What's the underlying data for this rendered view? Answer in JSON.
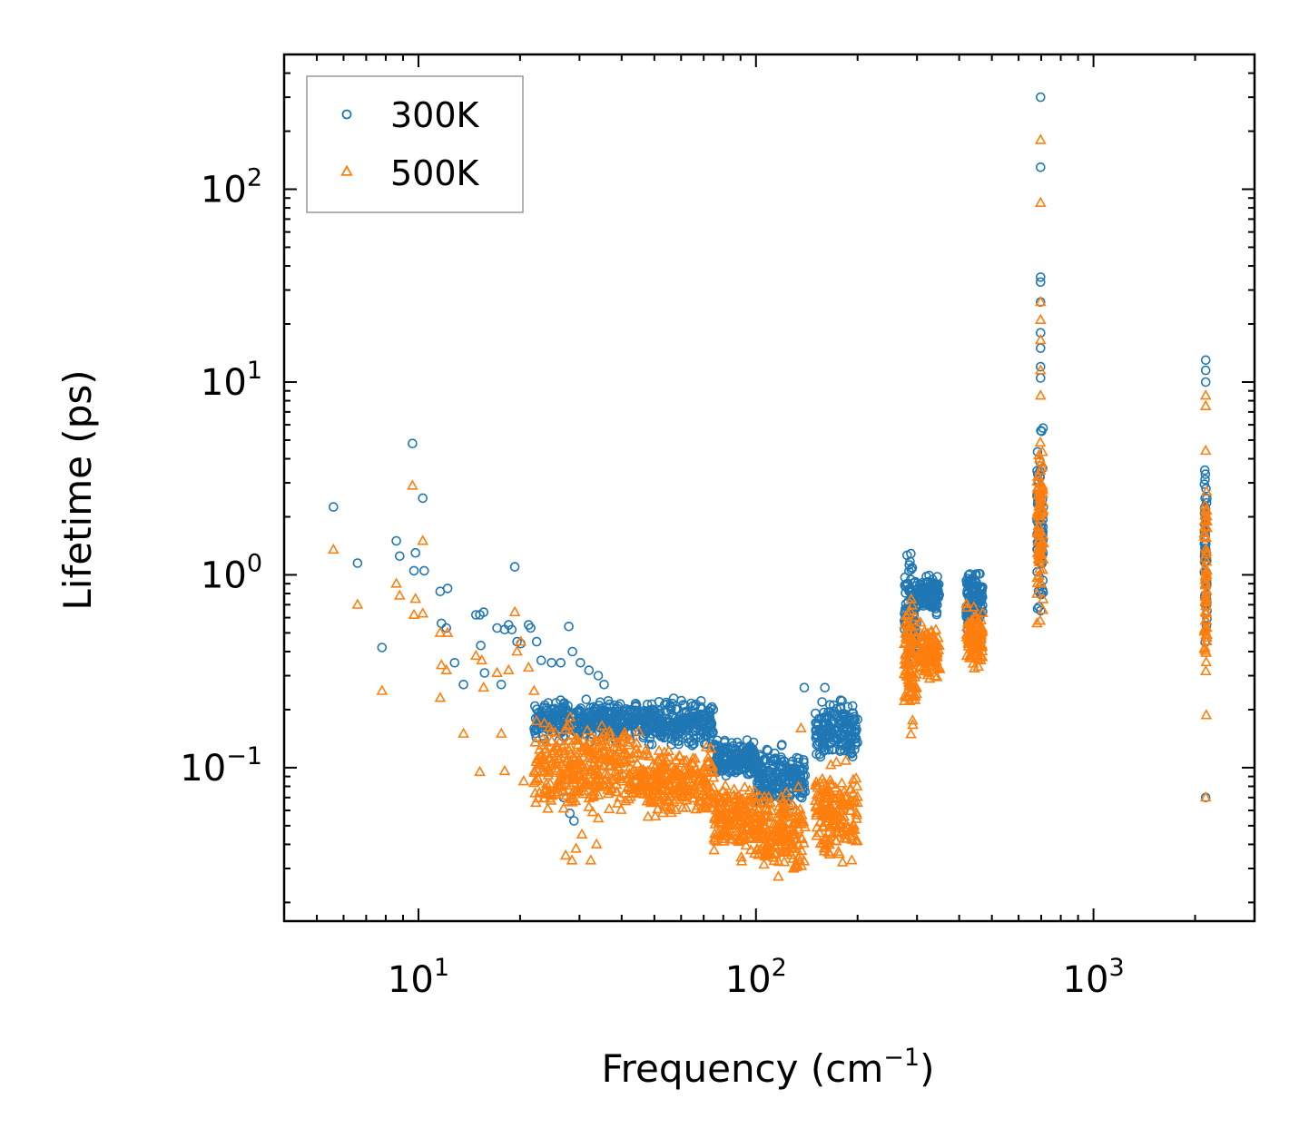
{
  "chart_data": {
    "type": "scatter",
    "xscale": "log",
    "yscale": "log",
    "xlabel": "Frequency (cm",
    "xlabel_sup": "−1",
    "xlabel_close": ")",
    "ylabel": "Lifetime (ps)",
    "xlim": [
      4,
      3000
    ],
    "ylim": [
      0.016,
      500
    ],
    "x_ticks": [
      {
        "base": "10",
        "exp": "1",
        "value": 10
      },
      {
        "base": "10",
        "exp": "2",
        "value": 100
      },
      {
        "base": "10",
        "exp": "3",
        "value": 1000
      }
    ],
    "y_ticks": [
      {
        "base": "10",
        "exp": "−1",
        "value": 0.1
      },
      {
        "base": "10",
        "exp": "0",
        "value": 1
      },
      {
        "base": "10",
        "exp": "1",
        "value": 10
      },
      {
        "base": "10",
        "exp": "2",
        "value": 100
      }
    ],
    "legend_position": "top-left",
    "series": [
      {
        "name": "300K",
        "marker": "circle",
        "color": "#1f77b4",
        "points": [
          [
            5.6,
            2.25
          ],
          [
            6.6,
            1.15
          ],
          [
            7.8,
            0.42
          ],
          [
            8.6,
            1.5
          ],
          [
            8.8,
            1.25
          ],
          [
            9.6,
            4.8
          ],
          [
            9.7,
            1.05
          ],
          [
            9.8,
            1.3
          ],
          [
            10.3,
            2.5
          ],
          [
            10.4,
            1.05
          ],
          [
            11.6,
            0.82
          ],
          [
            12.2,
            0.85
          ],
          [
            11.7,
            0.56
          ],
          [
            12.1,
            0.53
          ],
          [
            12.8,
            0.35
          ],
          [
            13.6,
            0.27
          ],
          [
            14.8,
            0.62
          ],
          [
            15.2,
            0.62
          ],
          [
            15.6,
            0.64
          ],
          [
            15.3,
            0.43
          ],
          [
            15.7,
            0.31
          ],
          [
            17.1,
            0.53
          ],
          [
            17.6,
            0.27
          ],
          [
            18.0,
            0.52
          ],
          [
            18.5,
            0.55
          ],
          [
            18.9,
            0.52
          ],
          [
            19.3,
            1.1
          ],
          [
            19.6,
            0.45
          ],
          [
            20.1,
            0.44
          ],
          [
            21.2,
            0.55
          ],
          [
            21.5,
            0.53
          ],
          [
            22.4,
            0.45
          ],
          [
            23.1,
            0.36
          ],
          [
            24.8,
            0.35
          ],
          [
            26.4,
            0.35
          ],
          [
            27.9,
            0.54
          ],
          [
            28.6,
            0.4
          ],
          [
            30.2,
            0.35
          ],
          [
            32.0,
            0.32
          ],
          [
            34.1,
            0.3
          ],
          [
            35.5,
            0.27
          ],
          [
            26.9,
            0.07
          ],
          [
            28.1,
            0.058
          ],
          [
            28.9,
            0.053
          ],
          [
            139.0,
            0.26
          ],
          [
            160.0,
            0.26
          ],
          [
            697.0,
            300.0
          ],
          [
            697.0,
            130.0
          ],
          [
            697.0,
            35.0
          ],
          [
            697.0,
            33.0
          ],
          [
            697.0,
            26.0
          ],
          [
            697.0,
            18.0
          ],
          [
            697.0,
            15.0
          ],
          [
            697.0,
            12.0
          ],
          [
            697.0,
            10.5
          ],
          [
            2150.0,
            13.0
          ],
          [
            2150.0,
            11.5
          ],
          [
            2150.0,
            10.0
          ],
          [
            2150.0,
            0.07
          ]
        ],
        "bands": [
          {
            "xmin": 22,
            "xmax": 45,
            "ylo": 0.13,
            "yhi": 0.24
          },
          {
            "xmin": 45,
            "xmax": 75,
            "ylo": 0.12,
            "yhi": 0.24
          },
          {
            "xmin": 75,
            "xmax": 100,
            "ylo": 0.08,
            "yhi": 0.15
          },
          {
            "xmin": 100,
            "xmax": 140,
            "ylo": 0.055,
            "yhi": 0.14
          },
          {
            "xmin": 150,
            "xmax": 200,
            "ylo": 0.1,
            "yhi": 0.25
          },
          {
            "xmin": 275,
            "xmax": 300,
            "ylo": 0.25,
            "yhi": 1.65
          },
          {
            "xmin": 305,
            "xmax": 350,
            "ylo": 0.6,
            "yhi": 1.05
          },
          {
            "xmin": 420,
            "xmax": 470,
            "ylo": 0.45,
            "yhi": 1.3
          },
          {
            "xmin": 680,
            "xmax": 710,
            "ylo": 0.45,
            "yhi": 7.5
          },
          {
            "xmin": 2130,
            "xmax": 2170,
            "ylo": 0.3,
            "yhi": 5.0
          }
        ]
      },
      {
        "name": "500K",
        "marker": "triangle",
        "color": "#ff7f0e",
        "points": [
          [
            5.6,
            1.35
          ],
          [
            6.6,
            0.7
          ],
          [
            7.8,
            0.25
          ],
          [
            8.6,
            0.9
          ],
          [
            8.8,
            0.78
          ],
          [
            9.6,
            2.9
          ],
          [
            9.8,
            0.75
          ],
          [
            10.3,
            1.5
          ],
          [
            9.7,
            0.62
          ],
          [
            10.3,
            0.63
          ],
          [
            11.6,
            0.5
          ],
          [
            12.2,
            0.5
          ],
          [
            11.7,
            0.34
          ],
          [
            12.1,
            0.32
          ],
          [
            11.6,
            0.23
          ],
          [
            13.6,
            0.15
          ],
          [
            14.8,
            0.38
          ],
          [
            15.4,
            0.36
          ],
          [
            15.6,
            0.26
          ],
          [
            15.2,
            0.095
          ],
          [
            17.1,
            0.31
          ],
          [
            17.6,
            0.15
          ],
          [
            18.0,
            0.096
          ],
          [
            18.5,
            0.32
          ],
          [
            19.3,
            0.64
          ],
          [
            19.6,
            0.4
          ],
          [
            20.1,
            0.45
          ],
          [
            21.2,
            0.33
          ],
          [
            22.0,
            0.25
          ],
          [
            23.6,
            0.17
          ],
          [
            20.5,
            0.085
          ],
          [
            27.3,
            0.035
          ],
          [
            28.5,
            0.033
          ],
          [
            29.3,
            0.038
          ],
          [
            32.4,
            0.033
          ],
          [
            30.5,
            0.045
          ],
          [
            33.7,
            0.04
          ],
          [
            136.0,
            0.16
          ],
          [
            697.0,
            180.0
          ],
          [
            697.0,
            85.0
          ],
          [
            697.0,
            26.0
          ],
          [
            697.0,
            21.0
          ],
          [
            697.0,
            16.5
          ],
          [
            697.0,
            11.5
          ],
          [
            697.0,
            8.5
          ],
          [
            2150.0,
            8.5
          ],
          [
            2150.0,
            7.5
          ],
          [
            2150.0,
            4.4
          ],
          [
            2150.0,
            0.07
          ]
        ],
        "bands": [
          {
            "xmin": 22,
            "xmax": 45,
            "ylo": 0.05,
            "yhi": 0.2
          },
          {
            "xmin": 45,
            "xmax": 75,
            "ylo": 0.05,
            "yhi": 0.14
          },
          {
            "xmin": 75,
            "xmax": 100,
            "ylo": 0.03,
            "yhi": 0.1
          },
          {
            "xmin": 100,
            "xmax": 140,
            "ylo": 0.024,
            "yhi": 0.09
          },
          {
            "xmin": 150,
            "xmax": 200,
            "ylo": 0.026,
            "yhi": 0.12
          },
          {
            "xmin": 275,
            "xmax": 300,
            "ylo": 0.13,
            "yhi": 0.95
          },
          {
            "xmin": 305,
            "xmax": 350,
            "ylo": 0.26,
            "yhi": 0.6
          },
          {
            "xmin": 420,
            "xmax": 470,
            "ylo": 0.3,
            "yhi": 0.75
          },
          {
            "xmin": 680,
            "xmax": 710,
            "ylo": 0.45,
            "yhi": 7.0
          },
          {
            "xmin": 2130,
            "xmax": 2170,
            "ylo": 0.17,
            "yhi": 4.0
          }
        ]
      }
    ]
  }
}
